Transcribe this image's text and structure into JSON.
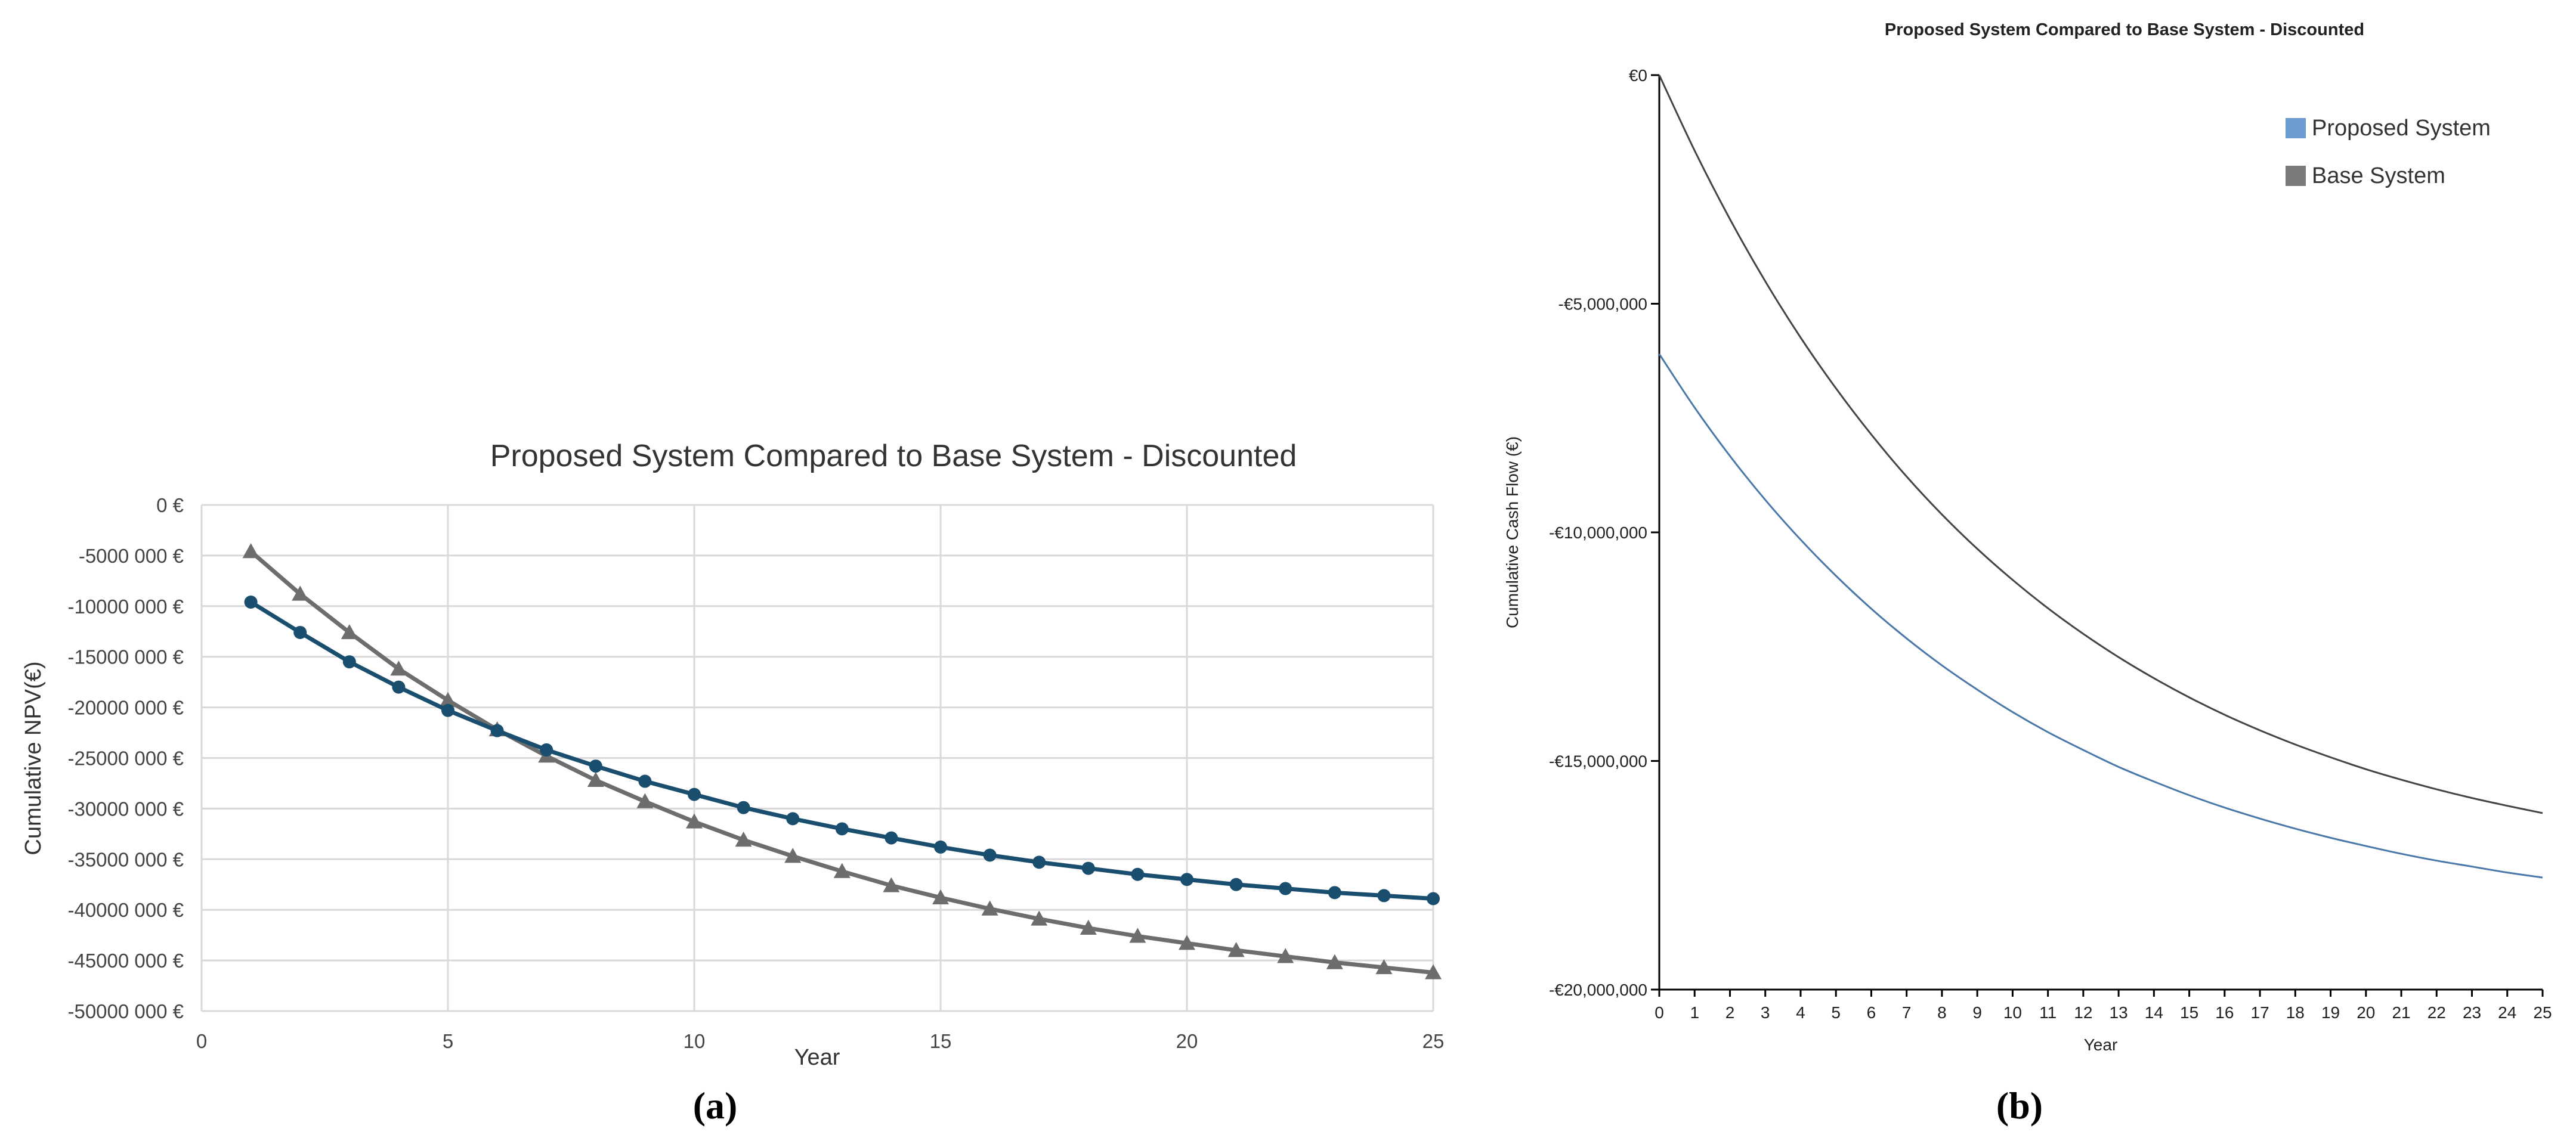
{
  "chart_data": [
    {
      "type": "line",
      "panel_label": "(a)",
      "title": "Proposed System Compared to Base System - Discounted",
      "xlabel": "Year",
      "ylabel": "Cumulative NPV(€)",
      "xlim": [
        0,
        25
      ],
      "ylim": [
        -50000000,
        0
      ],
      "x_ticks": [
        0,
        5,
        10,
        15,
        20,
        25
      ],
      "y_ticks": [
        {
          "value": 0,
          "label": "0 €"
        },
        {
          "value": -5000000,
          "label": "-5000 000 €"
        },
        {
          "value": -10000000,
          "label": "-10000 000 €"
        },
        {
          "value": -15000000,
          "label": "-15000 000 €"
        },
        {
          "value": -20000000,
          "label": "-20000 000 €"
        },
        {
          "value": -25000000,
          "label": "-25000 000 €"
        },
        {
          "value": -30000000,
          "label": "-30000 000 €"
        },
        {
          "value": -35000000,
          "label": "-35000 000 €"
        },
        {
          "value": -40000000,
          "label": "-40000 000 €"
        },
        {
          "value": -45000000,
          "label": "-45000 000 €"
        },
        {
          "value": -50000000,
          "label": "-50000 000 €"
        }
      ],
      "grid": true,
      "x": [
        1,
        2,
        3,
        4,
        5,
        6,
        7,
        8,
        9,
        10,
        11,
        12,
        13,
        14,
        15,
        16,
        17,
        18,
        19,
        20,
        21,
        22,
        23,
        24,
        25
      ],
      "series": [
        {
          "color": "#1a4e6e",
          "marker": "circle",
          "values": [
            -9600000,
            -12600000,
            -15500000,
            -18000000,
            -20300000,
            -22300000,
            -24200000,
            -25800000,
            -27300000,
            -28600000,
            -29900000,
            -31000000,
            -32000000,
            -32900000,
            -33800000,
            -34600000,
            -35300000,
            -35900000,
            -36500000,
            -37000000,
            -37500000,
            -37900000,
            -38300000,
            -38600000,
            -38900000
          ]
        },
        {
          "color": "#6d6d6d",
          "marker": "triangle",
          "values": [
            -4600000,
            -8800000,
            -12600000,
            -16200000,
            -19300000,
            -22200000,
            -24800000,
            -27200000,
            -29300000,
            -31300000,
            -33100000,
            -34700000,
            -36200000,
            -37600000,
            -38800000,
            -39900000,
            -40900000,
            -41800000,
            -42600000,
            -43300000,
            -44000000,
            -44600000,
            -45200000,
            -45700000,
            -46200000
          ]
        }
      ]
    },
    {
      "type": "line",
      "panel_label": "(b)",
      "title": "Proposed System Compared to Base System - Discounted",
      "xlabel": "Year",
      "ylabel": "Cumulative Cash Flow (€)",
      "xlim": [
        0,
        25
      ],
      "ylim": [
        -20000000,
        0
      ],
      "x_ticks": [
        0,
        1,
        2,
        3,
        4,
        5,
        6,
        7,
        8,
        9,
        10,
        11,
        12,
        13,
        14,
        15,
        16,
        17,
        18,
        19,
        20,
        21,
        22,
        23,
        24,
        25
      ],
      "y_ticks": [
        {
          "value": 0,
          "label": "€0"
        },
        {
          "value": -5000000,
          "label": "-€5,000,000"
        },
        {
          "value": -10000000,
          "label": "-€10,000,000"
        },
        {
          "value": -15000000,
          "label": "-€15,000,000"
        },
        {
          "value": -20000000,
          "label": "-€20,000,000"
        }
      ],
      "grid": false,
      "legend_position": "top-right",
      "x": [
        0,
        1,
        2,
        3,
        4,
        5,
        6,
        7,
        8,
        9,
        10,
        11,
        12,
        13,
        14,
        15,
        16,
        17,
        18,
        19,
        20,
        21,
        22,
        23,
        24,
        25
      ],
      "series": [
        {
          "name": "Proposed System",
          "color": "#4a78a8",
          "legend_color": "#6b9bd1",
          "values": [
            -6100000,
            -7270000,
            -8330000,
            -9290000,
            -10160000,
            -10950000,
            -11670000,
            -12320000,
            -12910000,
            -13440000,
            -13930000,
            -14370000,
            -14760000,
            -15130000,
            -15450000,
            -15750000,
            -16020000,
            -16260000,
            -16480000,
            -16680000,
            -16860000,
            -17030000,
            -17180000,
            -17310000,
            -17440000,
            -17550000
          ]
        },
        {
          "name": "Base System",
          "color": "#444444",
          "legend_color": "#7b7b7b",
          "values": [
            0,
            -1650000,
            -3150000,
            -4510000,
            -5740000,
            -6850000,
            -7860000,
            -8780000,
            -9610000,
            -10360000,
            -11040000,
            -11660000,
            -12220000,
            -12730000,
            -13190000,
            -13610000,
            -13990000,
            -14330000,
            -14640000,
            -14920000,
            -15180000,
            -15410000,
            -15620000,
            -15810000,
            -15980000,
            -16140000
          ]
        }
      ]
    }
  ]
}
